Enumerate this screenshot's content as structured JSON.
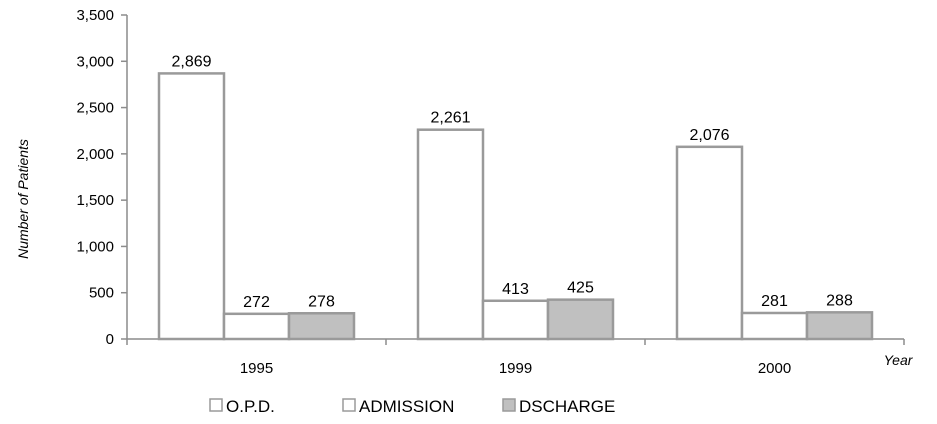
{
  "chart_data": {
    "type": "bar",
    "categories": [
      "1995",
      "1999",
      "2000"
    ],
    "series": [
      {
        "name": "O.P.D.",
        "values": [
          2869,
          2261,
          2076
        ],
        "value_labels": [
          "2,869",
          "2,261",
          "2,076"
        ],
        "color": "#ffffff",
        "stroke": "#9a9a9a"
      },
      {
        "name": "ADMISSION",
        "values": [
          272,
          413,
          281
        ],
        "value_labels": [
          "272",
          "413",
          "281"
        ],
        "color": "#ffffff",
        "stroke": "#9a9a9a"
      },
      {
        "name": "DSCHARGE",
        "values": [
          278,
          425,
          288
        ],
        "value_labels": [
          "278",
          "425",
          "288"
        ],
        "color": "#c0c0c0",
        "stroke": "#9a9a9a"
      }
    ],
    "xlabel": "Year",
    "ylabel": "Number of Patients",
    "ylim": [
      0,
      3500
    ],
    "yticks": [
      0,
      500,
      1000,
      1500,
      2000,
      2500,
      3000,
      3500
    ],
    "ytick_labels": [
      "0",
      "500",
      "1,000",
      "1,500",
      "2,000",
      "2,500",
      "3,000",
      "3,500"
    ],
    "grid": false,
    "legend_position": "bottom",
    "axis_color": "#8c8c8c"
  }
}
